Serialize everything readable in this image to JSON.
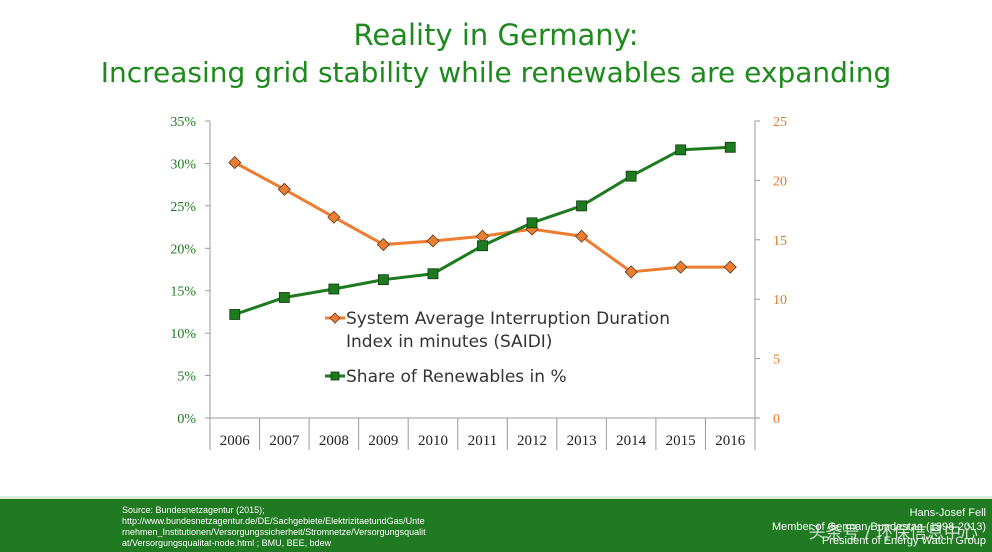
{
  "title": {
    "line1": "Reality in Germany:",
    "line2": "Increasing grid stability while renewables are expanding"
  },
  "colors": {
    "title": "#1e8a1e",
    "saidi": "#ed7d31",
    "renewables": "#1e7a1e",
    "left_axis_text": "#1e7a1e",
    "right_axis_text": "#e07b30",
    "footer_bg": "#1f7a22"
  },
  "chart_data": {
    "type": "line",
    "categories": [
      "2006",
      "2007",
      "2008",
      "2009",
      "2010",
      "2011",
      "2012",
      "2013",
      "2014",
      "2015",
      "2016"
    ],
    "left_axis": {
      "ylim": [
        0,
        35
      ],
      "ticks": [
        "0%",
        "5%",
        "10%",
        "15%",
        "20%",
        "25%",
        "30%",
        "35%"
      ]
    },
    "right_axis": {
      "ylim": [
        0,
        25
      ],
      "ticks": [
        "0",
        "5",
        "10",
        "15",
        "20",
        "25"
      ]
    },
    "series": [
      {
        "name": "System Average Interruption Duration Index in minutes (SAIDI)",
        "legend_line1": "System Average Interruption Duration",
        "legend_line2": "Index in minutes (SAIDI)",
        "axis": "right",
        "marker": "diamond",
        "values": [
          21.5,
          19.25,
          16.9,
          14.6,
          14.9,
          15.3,
          15.9,
          15.3,
          12.3,
          12.7,
          12.7
        ]
      },
      {
        "name": "Share of Renewables in %",
        "legend_line1": "Share of Renewables in %",
        "axis": "left",
        "marker": "square",
        "values": [
          12.2,
          14.2,
          15.2,
          16.3,
          17.0,
          20.3,
          23.0,
          25.0,
          28.5,
          31.6,
          31.9
        ]
      }
    ],
    "legend_position": "center-right"
  },
  "footer": {
    "source_lines": [
      "Source: Bundesnetzagentur (2015);",
      "http://www.bundesnetzagentur.de/DE/Sachgebiete/ElektrizitaetundGas/Unte",
      "rnehmen_Institutionen/Versorgungssicherheit/Stromnetze/Versorgungsqualit",
      "at/Versorgungsqualitat-node.html ; BMU, BEE, bdew"
    ],
    "author_lines": [
      "Hans-Josef Fell",
      "Member of German Bundestag (1998-2013)",
      "President of Energy Watch Group"
    ],
    "watermark": "头条号 / 环保信息中心"
  }
}
